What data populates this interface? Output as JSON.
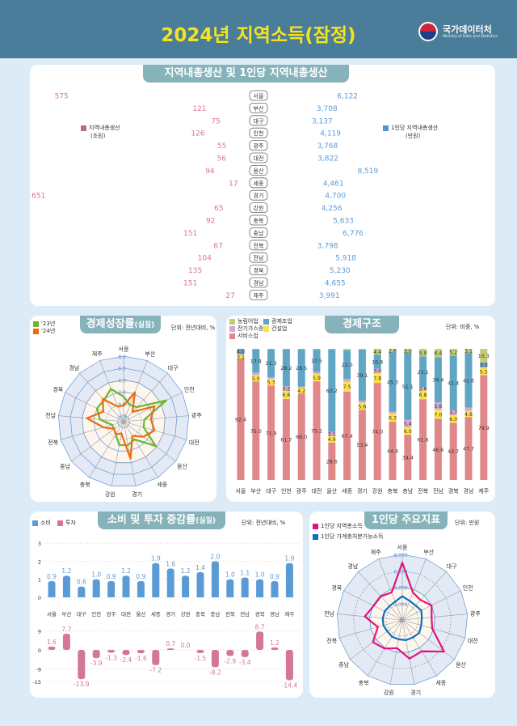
{
  "header": {
    "title": "2024년 지역소득(잠정)",
    "logo_name": "국가데이터처",
    "logo_sub": "Ministry of Data and Statistics"
  },
  "regions": [
    "서울",
    "부산",
    "대구",
    "인천",
    "광주",
    "대전",
    "울산",
    "세종",
    "경기",
    "강원",
    "충북",
    "충남",
    "전북",
    "전남",
    "경북",
    "경남",
    "제주"
  ],
  "grdp": {
    "title": "지역내총생산 및 1인당 지역내총생산",
    "left_legend": "지역내총생산",
    "left_unit": "(조원)",
    "right_legend": "1인당 지역내총생산",
    "right_unit": "(만원)",
    "colors": {
      "grdp": "#c06e98",
      "per_capita": "#5b8fd0"
    },
    "chart_data": {
      "type": "bar",
      "series": [
        {
          "name": "지역내총생산",
          "unit": "조원",
          "values": [
            575,
            121,
            75,
            126,
            55,
            56,
            94,
            17,
            651,
            65,
            92,
            151,
            67,
            104,
            135,
            151,
            27
          ],
          "labels": [
            "575",
            "121",
            "75",
            "126",
            "55",
            "56",
            "94",
            "17",
            "651",
            "65",
            "92",
            "151",
            "67",
            "104",
            "135",
            "151",
            "27"
          ]
        },
        {
          "name": "1인당 지역내총생산",
          "unit": "만원",
          "values": [
            6122,
            3708,
            3137,
            4119,
            3768,
            3822,
            8519,
            4461,
            4700,
            4256,
            5633,
            6776,
            3798,
            5918,
            5230,
            4655,
            3991
          ],
          "labels": [
            "6,122",
            "3,708",
            "3,137",
            "4,119",
            "3,768",
            "3,822",
            "8,519",
            "4,461",
            "4,700",
            "4,256",
            "5,633",
            "6,776",
            "3,798",
            "5,918",
            "5,230",
            "4,655",
            "3,991"
          ]
        }
      ]
    }
  },
  "growth": {
    "title": "경제성장률",
    "title_sub": "(실질)",
    "unit": "단위: 전년대비, %",
    "chart_data": {
      "type": "radar",
      "range": [
        -3,
        8
      ],
      "ring_labels": [
        "-2.0",
        "0.0",
        "2.0",
        "4.0",
        "6.0",
        "8.0"
      ],
      "ring_values": [
        -2,
        0,
        2,
        4,
        6,
        8
      ],
      "series": [
        {
          "name": "'23년",
          "color": "#6cb52d",
          "values": [
            1.2,
            0.0,
            0.3,
            5.0,
            0.5,
            0.5,
            3.8,
            0.5,
            1.0,
            1.0,
            -0.5,
            -1.0,
            -1.0,
            1.0,
            2.0,
            1.9,
            2.9
          ]
        },
        {
          "name": "'24년",
          "color": "#ee6a10",
          "values": [
            -0.3,
            2.3,
            -0.8,
            2.8,
            1.6,
            2.4,
            1.2,
            -0.2,
            3.3,
            -1.0,
            -0.5,
            -1.0,
            0.5,
            3.2,
            0.8,
            2.2,
            -0.3
          ]
        }
      ]
    }
  },
  "structure": {
    "title": "경제구조",
    "unit": "단위: 비중, %",
    "chart_data": {
      "type": "stacked-bar",
      "series": [
        {
          "name": "서비스업",
          "color": "#e0878a",
          "values": [
            92.4,
            75.0,
            71.9,
            61.7,
            66.0,
            75.2,
            28.6,
            67.4,
            53.4,
            74.0,
            44.4,
            34.4,
            61.6,
            46.6,
            43.7,
            47.7,
            79.9
          ]
        },
        {
          "name": "건설업",
          "color": "#fde04a",
          "values": [
            3.1,
            5.0,
            5.3,
            6.6,
            4.2,
            5.9,
            4.9,
            7.5,
            5.6,
            7.8,
            6.3,
            6.0,
            6.8,
            7.0,
            6.0,
            4.8,
            5.5
          ]
        },
        {
          "name": "전기가스증기",
          "color": "#d6a6d6",
          "values": [
            0.5,
            1.9,
            1.2,
            3.2,
            1.0,
            1.2,
            3.1,
            2.1,
            1.4,
            3.0,
            1.4,
            5.4,
            2.6,
            5.6,
            3.7,
            2.4,
            1.0
          ]
        },
        {
          "name": "광제조업",
          "color": "#5ea6c4",
          "values": [
            4.0,
            17.8,
            21.3,
            28.2,
            28.5,
            17.5,
            63.2,
            22.0,
            39.1,
            10.8,
            45.3,
            51.1,
            23.1,
            34.4,
            41.4,
            41.6,
            3.3
          ]
        },
        {
          "name": "농림어업",
          "color": "#c3cc74",
          "values": [
            0.0,
            0.3,
            0.3,
            0.3,
            0.3,
            0.2,
            0.2,
            1.0,
            0.5,
            4.4,
            2.6,
            3.0,
            5.9,
            6.4,
            5.2,
            3.1,
            10.3
          ]
        }
      ],
      "legend_order": [
        "농림어업",
        "광제조업",
        "전기가스증기",
        "건설업",
        "서비스업"
      ]
    }
  },
  "consumption": {
    "title": "소비 및 투자 증감률",
    "title_sub": "(실질)",
    "unit": "단위: 전년대비, %",
    "chart_data": [
      {
        "type": "bar",
        "name": "소비",
        "color": "#5b9bd5",
        "values": [
          0.9,
          1.2,
          0.6,
          1.0,
          0.9,
          1.2,
          0.9,
          1.9,
          1.6,
          1.2,
          1.4,
          2.0,
          1.0,
          1.1,
          1.0,
          0.9,
          1.9
        ],
        "labels": [
          "0.9",
          "1.2",
          "0.6",
          "1.0",
          "0.9",
          "1.2",
          "0.9",
          "1.9",
          "1.6",
          "1.2",
          "1.4",
          "2.0",
          "1.0",
          "1.1",
          "1.0",
          "0.9",
          "1.9"
        ],
        "ylim": [
          0,
          3
        ],
        "yticks": [
          "0",
          "1",
          "2",
          "3"
        ]
      },
      {
        "type": "bar",
        "name": "투자",
        "color": "#d4759a",
        "values": [
          1.6,
          7.7,
          -13.9,
          -3.9,
          -1.3,
          -2.4,
          -1.6,
          -7.2,
          0.7,
          0.0,
          -1.5,
          -8.2,
          -2.9,
          -3.4,
          8.7,
          1.2,
          -14.4
        ],
        "labels": [
          "1.6",
          "7.7",
          "-13.9",
          "-3.9",
          "-1.3",
          "-2.4",
          "-1.6",
          "-7.2",
          "0.7",
          "0.0",
          "-1.5",
          "-8.2",
          "-2.9",
          "-3.4",
          "8.7",
          "1.2",
          "-14.4"
        ],
        "ylim": [
          -15,
          9
        ],
        "yticks": [
          "9",
          "0",
          "-9",
          "-15"
        ]
      }
    ]
  },
  "percapita": {
    "title": "1인당 주요지표",
    "unit": "단위: 만원",
    "chart_data": {
      "type": "radar",
      "range": [
        0,
        8000
      ],
      "ring_labels": [
        "0",
        "2,000",
        "4,000",
        "6,000",
        "8,000"
      ],
      "ring_values": [
        0,
        2000,
        4000,
        6000,
        8000
      ],
      "series": [
        {
          "name": "1인당 지역총소득",
          "color": "#e0137a",
          "values": [
            7000,
            3600,
            3300,
            4000,
            3600,
            3800,
            6400,
            4500,
            4800,
            3500,
            4100,
            4500,
            3100,
            4600,
            3900,
            3900,
            3600
          ]
        },
        {
          "name": "1인당 가계총처분가능소득",
          "color": "#0d6fbd",
          "values": [
            2900,
            2500,
            2400,
            2600,
            2400,
            2400,
            2600,
            2500,
            2500,
            2400,
            2400,
            2300,
            2400,
            2400,
            2400,
            2300,
            2400
          ]
        }
      ]
    }
  }
}
